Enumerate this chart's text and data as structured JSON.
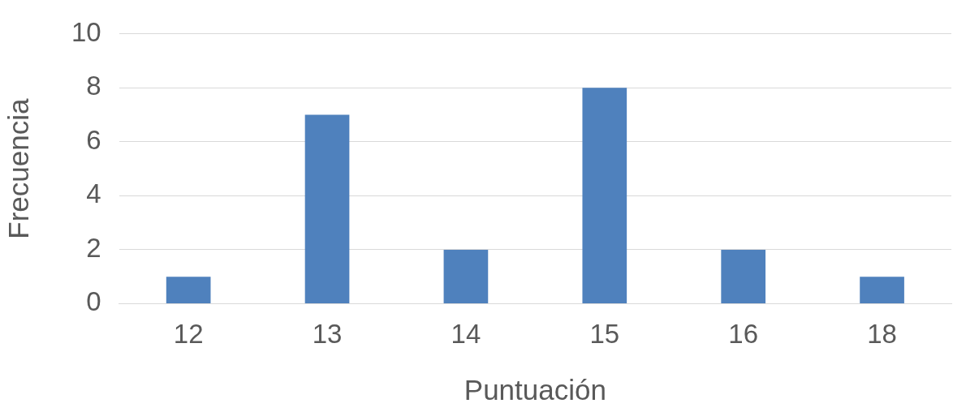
{
  "chart_data": {
    "type": "bar",
    "xlabel": "Puntuación",
    "ylabel": "Frecuencia",
    "categories": [
      "12",
      "13",
      "14",
      "15",
      "16",
      "18"
    ],
    "values": [
      1,
      7,
      2,
      8,
      2,
      1
    ],
    "color": "#4f81bd",
    "ylim": [
      0,
      10
    ],
    "yticks": [
      0,
      2,
      4,
      6,
      8,
      10
    ],
    "grid": "y",
    "legend": false
  }
}
